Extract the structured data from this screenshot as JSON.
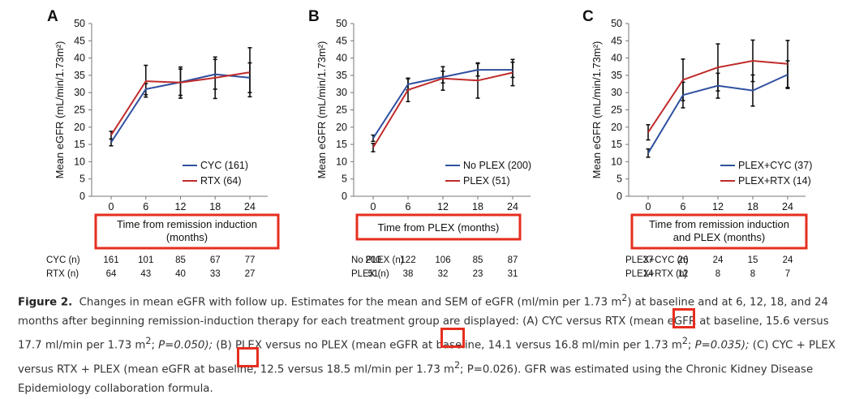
{
  "colors": {
    "series1": "#2f4fa0",
    "series2": "#c02b2b",
    "highlight": "#e62e1f",
    "errorbar": "#111111"
  },
  "chart_data": [
    {
      "type": "line",
      "panel": "A",
      "ylabel": "Mean eGFR (mL/min/1.73m²)",
      "xlabel_lines": [
        "Time from remission induction",
        "(months)"
      ],
      "x": [
        0,
        6,
        12,
        18,
        24
      ],
      "ylim": [
        0,
        50
      ],
      "yticks": [
        0,
        5,
        10,
        15,
        20,
        25,
        30,
        35,
        40,
        45,
        50
      ],
      "legend_position": "bottom-right",
      "series": [
        {
          "name": "CYC (161)",
          "color": "#2f4fa0",
          "values": [
            15.6,
            31.0,
            33.0,
            35.3,
            34.3
          ],
          "sem": [
            1.0,
            1.6,
            3.8,
            4.3,
            4.3
          ]
        },
        {
          "name": "RTX (64)",
          "color": "#c02b2b",
          "values": [
            17.7,
            33.3,
            32.9,
            34.3,
            35.9
          ],
          "sem": [
            1.1,
            4.6,
            4.5,
            6.0,
            7.1
          ]
        }
      ],
      "n_table": [
        {
          "label": "CYC (n)",
          "values": [
            "161",
            "101",
            "85",
            "67",
            "77"
          ]
        },
        {
          "label": "RTX (n)",
          "values": [
            "64",
            "43",
            "40",
            "33",
            "27"
          ]
        }
      ]
    },
    {
      "type": "line",
      "panel": "B",
      "ylabel": "Mean eGFR (mL/min/1.73m²)",
      "xlabel_lines": [
        "Time from PLEX (months)"
      ],
      "x": [
        0,
        6,
        12,
        18,
        24
      ],
      "ylim": [
        0,
        50
      ],
      "yticks": [
        0,
        5,
        10,
        15,
        20,
        25,
        30,
        35,
        40,
        45,
        50
      ],
      "legend_position": "bottom-right",
      "series": [
        {
          "name": "No PLEX (200)",
          "color": "#2f4fa0",
          "values": [
            16.8,
            32.4,
            34.5,
            36.6,
            36.6
          ],
          "sem": [
            0.9,
            1.6,
            1.7,
            1.8,
            2.2
          ]
        },
        {
          "name": "PLEX (51)",
          "color": "#c02b2b",
          "values": [
            14.1,
            30.8,
            34.1,
            33.5,
            35.8
          ],
          "sem": [
            1.2,
            3.4,
            3.4,
            5.1,
            3.8
          ]
        }
      ],
      "n_table": [
        {
          "label": "No PLEX (n)",
          "values": [
            "200",
            "122",
            "106",
            "85",
            "87"
          ]
        },
        {
          "label": "PLEX (n)",
          "values": [
            "51",
            "38",
            "32",
            "23",
            "31"
          ]
        }
      ]
    },
    {
      "type": "line",
      "panel": "C",
      "ylabel": "Mean eGFR (mL/min/1.73m²)",
      "xlabel_lines": [
        "Time from remission induction",
        "and PLEX (months)"
      ],
      "x": [
        0,
        6,
        12,
        18,
        24
      ],
      "ylim": [
        0,
        50
      ],
      "yticks": [
        0,
        5,
        10,
        15,
        20,
        25,
        30,
        35,
        40,
        45,
        50
      ],
      "legend_position": "bottom-right",
      "series": [
        {
          "name": "PLEX+CYC (37)",
          "color": "#2f4fa0",
          "values": [
            12.5,
            29.3,
            32.0,
            30.6,
            35.2
          ],
          "sem": [
            1.2,
            3.7,
            3.6,
            4.5,
            4.0
          ]
        },
        {
          "name": "PLEX+RTX (14)",
          "color": "#c02b2b",
          "values": [
            18.5,
            33.7,
            37.3,
            39.2,
            38.3
          ],
          "sem": [
            2.2,
            6.0,
            6.8,
            6.0,
            6.8
          ]
        }
      ],
      "n_table": [
        {
          "label": "PLEX+CYC (n)",
          "values": [
            "37",
            "26",
            "24",
            "15",
            "24"
          ]
        },
        {
          "label": "PLEX+RTX (n)",
          "values": [
            "14",
            "12",
            "8",
            "8",
            "7"
          ]
        }
      ]
    }
  ],
  "caption": {
    "fig_label": "Figure 2.",
    "text1": "Changes in mean eGFR with follow up. Estimates for the mean and SEM of eGFR (ml/min per 1.73 m",
    "text2": ") at baseline and at 6, 12, 18, and 24 months after beginning remission-induction therapy for each treatment group are displayed: (",
    "label_a": "A)",
    "text3": " CYC versus RTX (mean eGFR at baseline, 15.6 versus 17.7 ml/min per 1.73 m",
    "text4": "; ",
    "p_a": "P=0.050); ",
    "label_b": "(B)",
    "text5": " PLEX versus no PLEX (mean eGFR at baseline, 14.1 versus 16.8 ml/min per 1.73 m",
    "text6": "; ",
    "p_b": "P=0.035); ",
    "label_c": "(C)",
    "text7": " CYC + PLEX versus RTX + PLEX (mean eGFR at baseline, 12.5 versus 18.5 ml/min per 1.73 m",
    "text8": "; ",
    "p_c": "P=0.026). GFR was estimated using the Chronic Kidney Disease Epidemiology collaboration formula.",
    "sup": "2"
  }
}
